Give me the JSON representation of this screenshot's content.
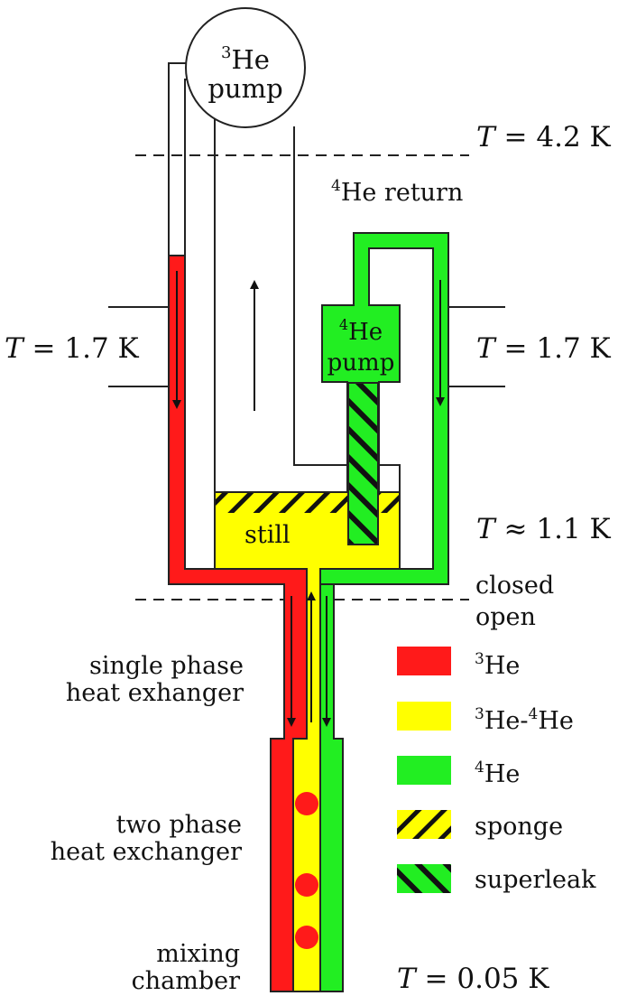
{
  "pump3": {
    "sup": "3",
    "name": "He",
    "line2": "pump"
  },
  "pump4": {
    "sup": "4",
    "name": "He",
    "line2": "pump"
  },
  "return4": {
    "sup": "4",
    "text": "He return"
  },
  "temps": {
    "top": {
      "var": "T",
      "rest": " = 4.2 K"
    },
    "left": {
      "var": "T",
      "rest": " = 1.7 K"
    },
    "right": {
      "var": "T",
      "rest": " = 1.7 K"
    },
    "still": {
      "var": "T",
      "rest": " ≈ 1.1 K"
    },
    "mixing": {
      "var": "T",
      "rest": " = 0.05 K"
    }
  },
  "still_label": "still",
  "closed_label": "closed",
  "open_label": "open",
  "single_phase": {
    "line1": "single phase",
    "line2": "heat exhanger"
  },
  "two_phase": {
    "line1": "two phase",
    "line2": "heat exchanger"
  },
  "mixing_chamber": {
    "line1": "mixing",
    "line2": "chamber"
  },
  "legend": {
    "he3": {
      "sup": "3",
      "text": "He"
    },
    "mix": {
      "sup1": "3",
      "mid": "He-",
      "sup2": "4",
      "end": "He"
    },
    "he4": {
      "sup": "4",
      "text": "He"
    },
    "sponge": "sponge",
    "superleak": "superleak"
  },
  "colors": {
    "he3": "#ff1a1a",
    "mix": "#ffff00",
    "he4": "#22ee22",
    "line": "#222222"
  }
}
